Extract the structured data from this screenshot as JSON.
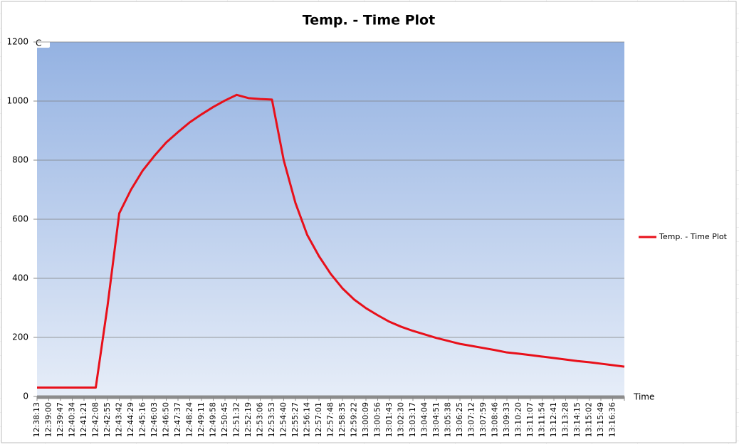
{
  "chart_data": {
    "type": "line",
    "title": "Temp. - Time Plot",
    "y_label": "C",
    "x_label": "Time",
    "categories": [
      "12:38:13",
      "12:39:00",
      "12:39:47",
      "12:40:34",
      "12:41:21",
      "12:42:08",
      "12:42:55",
      "12:43:42",
      "12:44:29",
      "12:45:16",
      "12:46:03",
      "12:46:50",
      "12:47:37",
      "12:48:24",
      "12:49:11",
      "12:49:58",
      "12:50:45",
      "12:51:32",
      "12:52:19",
      "12:53:06",
      "12:53:53",
      "12:54:40",
      "12:55:27",
      "12:56:14",
      "12:57:01",
      "12:57:48",
      "12:58:35",
      "12:59:22",
      "13:00:09",
      "13:00:56",
      "13:01:43",
      "13:02:30",
      "13:03:17",
      "13:04:04",
      "13:04:51",
      "13:05:38",
      "13:06:25",
      "13:07:12",
      "13:07:59",
      "13:08:46",
      "13:09:33",
      "13:10:20",
      "13:11:07",
      "13:11:54",
      "13:12:41",
      "13:13:28",
      "13:14:15",
      "13:15:02",
      "13:15:49",
      "13:16:36",
      null
    ],
    "series": [
      {
        "name": "Temp. - Time Plot",
        "color": "#e8101a",
        "values": [
          30,
          30,
          30,
          30,
          30,
          30,
          306,
          620,
          700,
          765,
          815,
          860,
          895,
          928,
          955,
          980,
          1002,
          1021,
          1010,
          1007,
          1005,
          800,
          655,
          547,
          475,
          415,
          366,
          328,
          299,
          275,
          253,
          236,
          222,
          210,
          198,
          188,
          178,
          171,
          164,
          157,
          149,
          145,
          140,
          135,
          130,
          125,
          120,
          116,
          111,
          106,
          101
        ]
      }
    ],
    "ylim": [
      0,
      1200
    ],
    "yticks": [
      0,
      200,
      400,
      600,
      800,
      1000,
      1200
    ],
    "grid": true,
    "legend": "right"
  }
}
